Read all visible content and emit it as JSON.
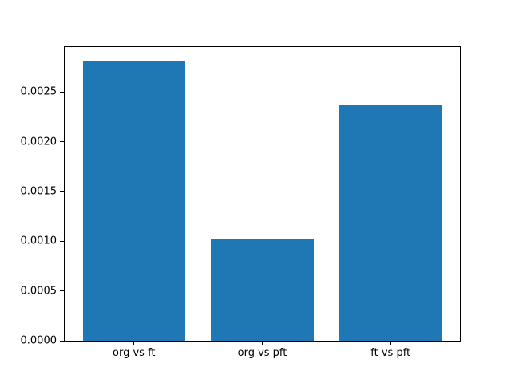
{
  "chart_data": {
    "type": "bar",
    "title": "",
    "xlabel": "",
    "ylabel": "",
    "categories": [
      "org vs ft",
      "org vs pft",
      "ft vs pft"
    ],
    "x": [
      0,
      1,
      2
    ],
    "values": [
      0.00281,
      0.00103,
      0.00237
    ],
    "bar_width": 0.8,
    "xlim": [
      -0.54,
      2.54
    ],
    "ylim": [
      0,
      0.002951
    ],
    "yticks": [
      0,
      0.0005,
      0.001,
      0.0015,
      0.002,
      0.0025
    ],
    "ytick_labels": [
      "0.0000",
      "0.0005",
      "0.0010",
      "0.0015",
      "0.0020",
      "0.0025"
    ],
    "bar_color": "#1f77b4",
    "axis_color": "#000000",
    "text_color": "#000000",
    "grid": false,
    "legend_position": null,
    "background": "#ffffff"
  }
}
